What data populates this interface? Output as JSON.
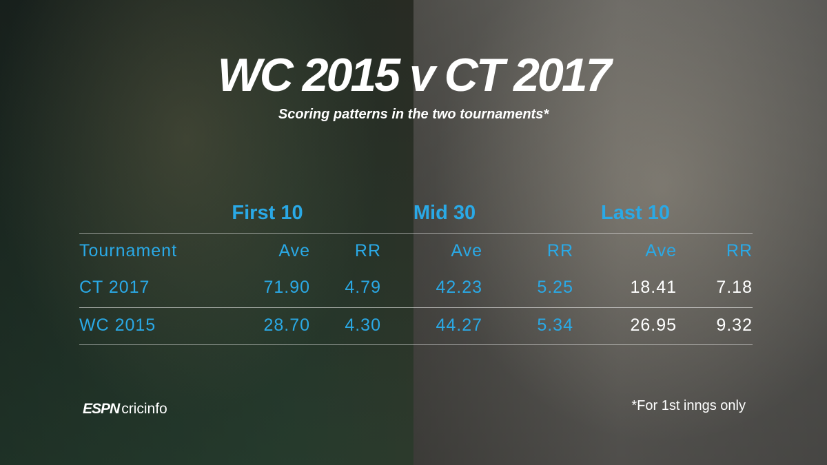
{
  "header": {
    "title": "WC 2015 v CT 2017",
    "subtitle": "Scoring patterns in the two tournaments*"
  },
  "table": {
    "groups": [
      "First 10",
      "Mid 30",
      "Last 10"
    ],
    "columns": [
      "Tournament",
      "Ave",
      "RR",
      "Ave",
      "RR",
      "Ave",
      "RR"
    ],
    "rows": [
      [
        "CT 2017",
        "71.90",
        "4.79",
        "42.23",
        "5.25",
        "18.41",
        "7.18"
      ],
      [
        "WC 2015",
        "28.70",
        "4.30",
        "44.27",
        "5.34",
        "26.95",
        "9.32"
      ]
    ]
  },
  "footnote": "*For 1st inngs only",
  "logo": {
    "brand": "ESPN",
    "name": "cricinfo"
  }
}
